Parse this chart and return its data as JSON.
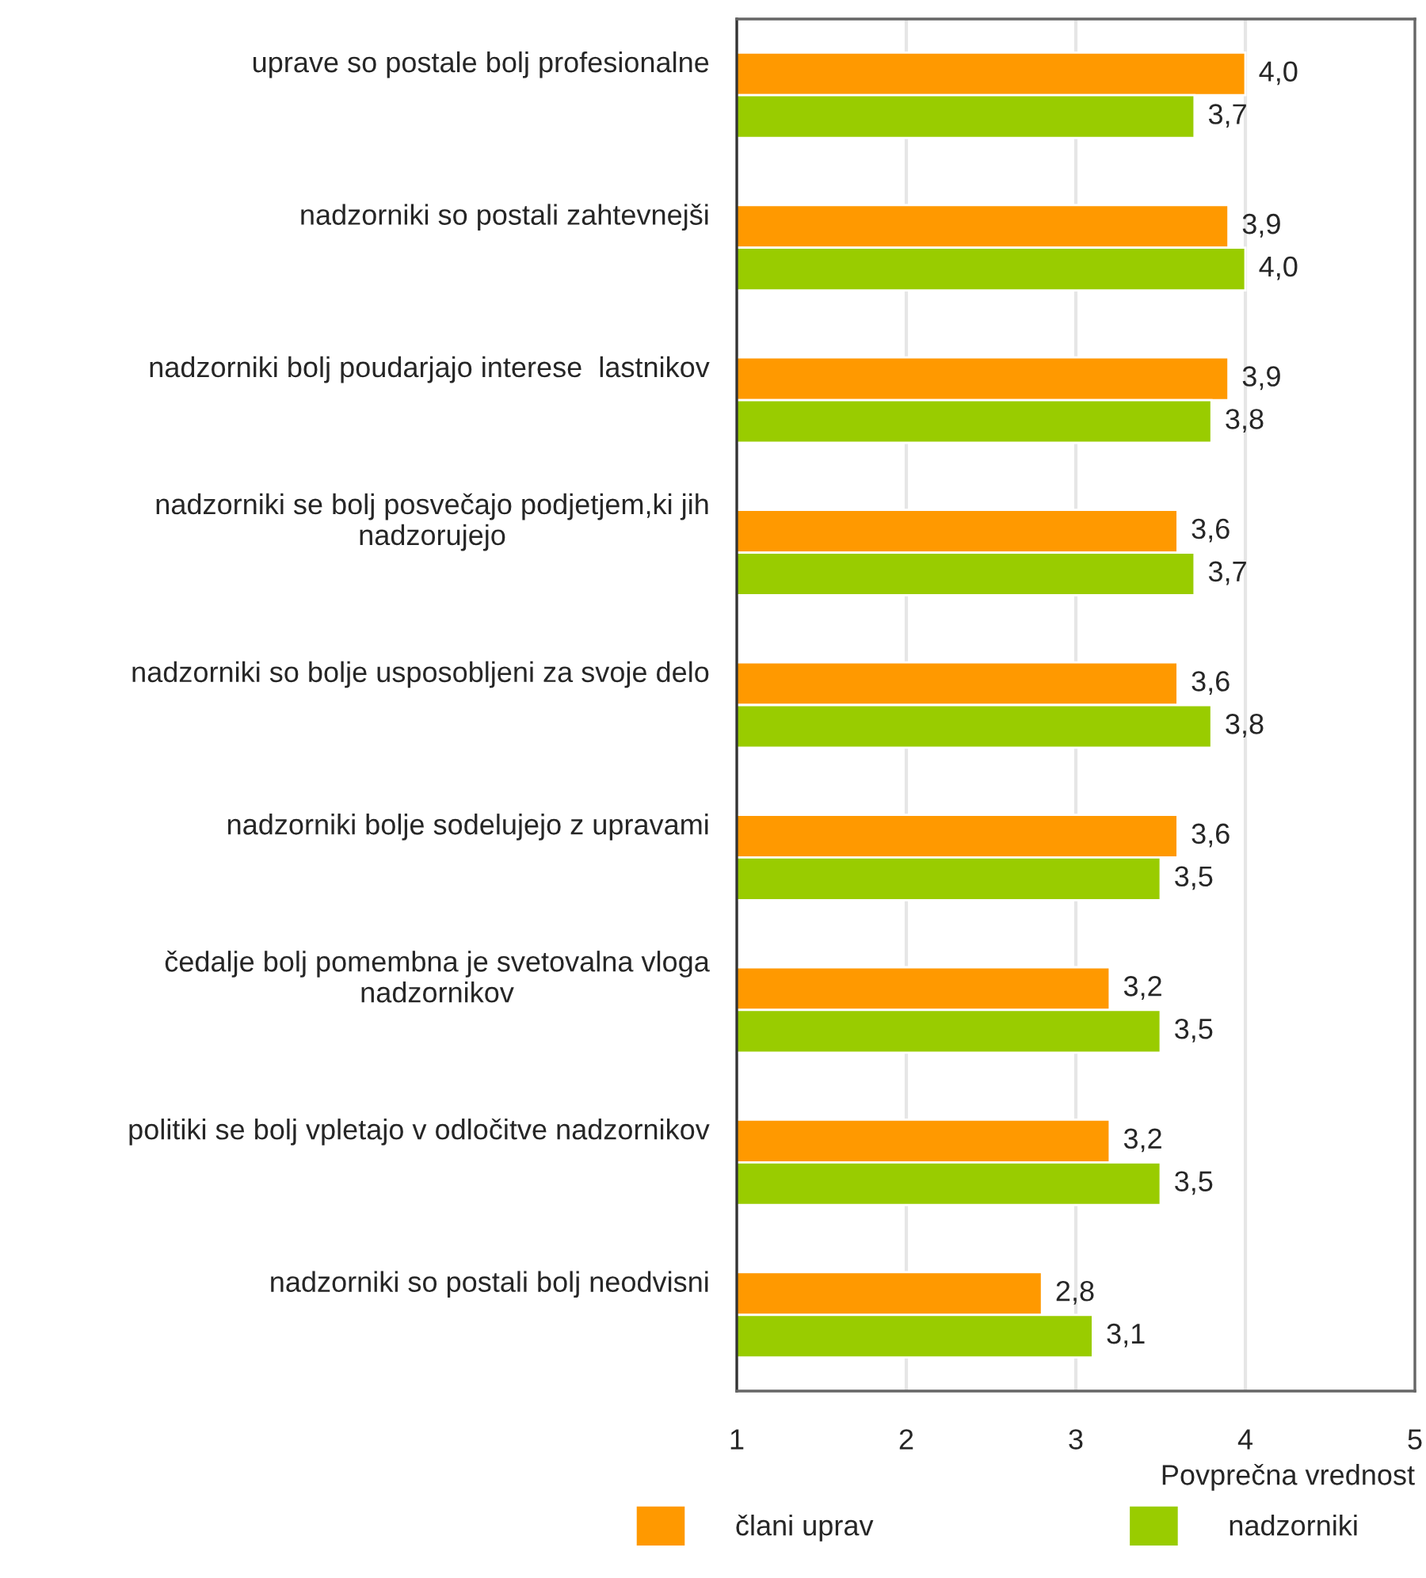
{
  "chart_data": {
    "type": "bar",
    "orientation": "horizontal",
    "categories": [
      "uprave so postale bolj profesionalne",
      "nadzorniki so postali zahtevnejši",
      "nadzorniki bolj poudarjajo interese  lastnikov",
      "nadzorniki se bolj posvečajo podjetjem,ki jih\nnadzorujejo",
      "nadzorniki so bolje usposobljeni za svoje delo",
      "nadzorniki bolje sodelujejo z upravami",
      "čedalje bolj pomembna je svetovalna vloga\nnadzornikov",
      "politiki se bolj vpletajo v odločitve nadzornikov",
      "nadzorniki so postali bolj neodvisni"
    ],
    "series": [
      {
        "name": "člani uprav",
        "color": "#ff9900",
        "values": [
          4.0,
          3.9,
          3.9,
          3.6,
          3.6,
          3.6,
          3.2,
          3.2,
          2.8
        ],
        "value_labels": [
          "4,0",
          "3,9",
          "3,9",
          "3,6",
          "3,6",
          "3,6",
          "3,2",
          "3,2",
          "2,8"
        ]
      },
      {
        "name": "nadzorniki",
        "color": "#99cc00",
        "values": [
          3.7,
          4.0,
          3.8,
          3.7,
          3.8,
          3.5,
          3.5,
          3.5,
          3.1
        ],
        "value_labels": [
          "3,7",
          "4,0",
          "3,8",
          "3,7",
          "3,8",
          "3,5",
          "3,5",
          "3,5",
          "3,1"
        ]
      }
    ],
    "xlabel": "Povprečna vrednost",
    "xlim": [
      1,
      5
    ],
    "xticks": [
      1,
      2,
      3,
      4,
      5
    ],
    "grid": "x",
    "legend": "bottom"
  }
}
